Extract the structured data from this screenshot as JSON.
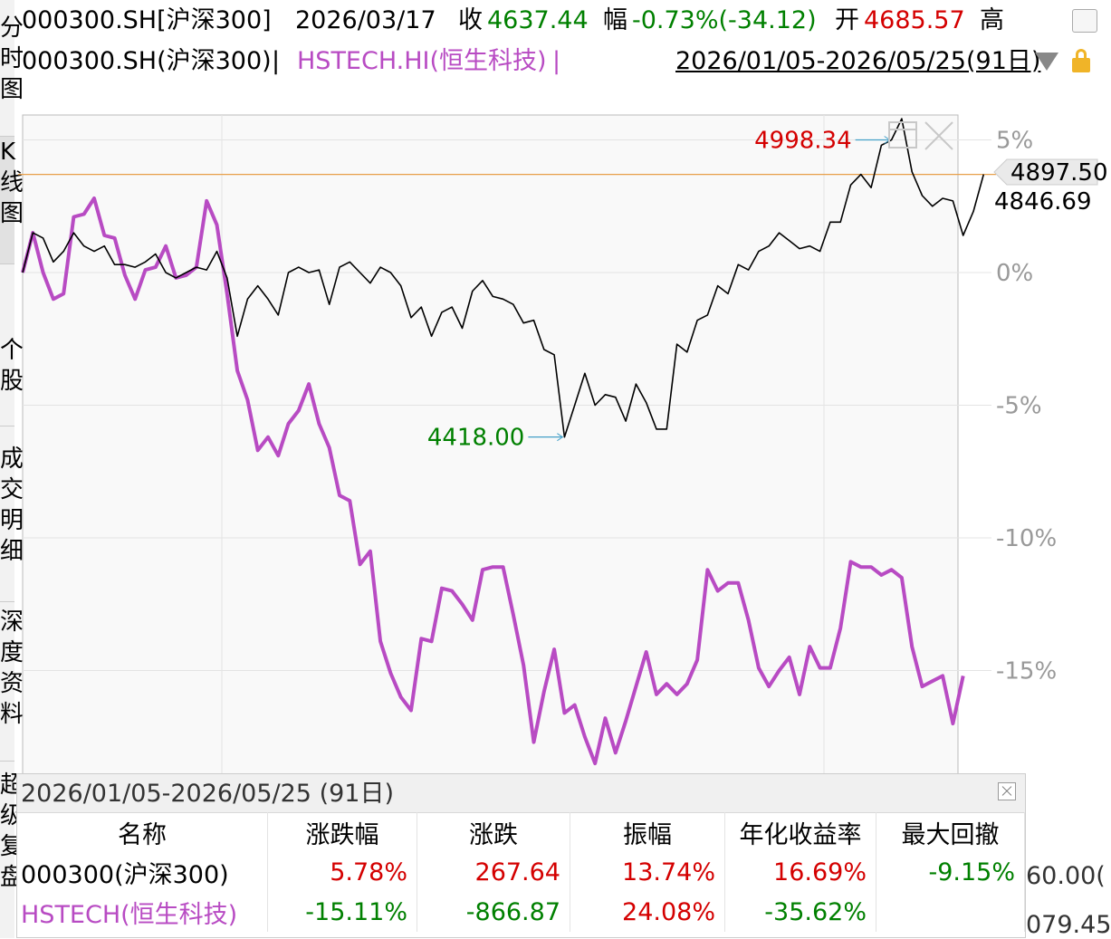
{
  "header": {
    "code": "000300.SH[沪深300]",
    "date": "2026/03/17",
    "close_label": "收",
    "close_value": "4637.44",
    "change_label": "幅",
    "change_value": "-0.73%(-34.12)",
    "open_label": "开",
    "open_value": "4685.57",
    "high_label": "高"
  },
  "legend": {
    "series1": "000300.SH(沪深300)",
    "separator": " | ",
    "series2": "HSTECH.HI(恒生科技)",
    "trailing": " |",
    "range": "2026/01/05-2026/05/25(91日)"
  },
  "sidebar": {
    "items": [
      {
        "label": "分时图",
        "active": false
      },
      {
        "label": "K线图",
        "active": true
      },
      {
        "label": "个股",
        "active": false
      },
      {
        "label": "成交明细",
        "active": false
      },
      {
        "label": "深度资料",
        "active": false
      },
      {
        "label": "超级复盘",
        "active": false
      }
    ]
  },
  "colors": {
    "csi300": "#000000",
    "hstech": "#b84bc3",
    "up": "#d40000",
    "down": "#008000",
    "refline": "#e8a04a"
  },
  "chart_data": {
    "type": "line",
    "yaxis_unit": "%",
    "ylim": [
      -18.5,
      6.5
    ],
    "y_ticks": [
      "5%",
      "0%",
      "-5%",
      "-10%",
      "-15%"
    ],
    "grid": true,
    "series": [
      {
        "name": "000300.SH(沪深300)",
        "color": "#000000",
        "values": [
          0.0,
          1.5,
          1.3,
          0.4,
          0.8,
          1.5,
          1.0,
          0.8,
          1.0,
          0.3,
          0.3,
          0.2,
          0.4,
          0.7,
          0.0,
          -0.2,
          0.0,
          0.2,
          0.1,
          0.8,
          -0.2,
          -2.4,
          -1.0,
          -0.5,
          -1.0,
          -1.6,
          0.0,
          0.2,
          0.0,
          0.1,
          -1.2,
          0.2,
          0.4,
          0.0,
          -0.4,
          0.2,
          0.0,
          -0.5,
          -1.7,
          -1.3,
          -2.4,
          -1.5,
          -1.3,
          -2.1,
          -0.7,
          -0.3,
          -0.9,
          -1.0,
          -1.2,
          -1.9,
          -1.8,
          -2.9,
          -3.1,
          -6.2,
          -5.0,
          -3.8,
          -5.0,
          -4.6,
          -4.7,
          -5.6,
          -4.2,
          -4.9,
          -5.9,
          -5.9,
          -2.7,
          -3.0,
          -1.8,
          -1.6,
          -0.5,
          -0.8,
          0.3,
          0.1,
          0.8,
          1.0,
          1.5,
          1.2,
          0.9,
          1.0,
          0.8,
          1.9,
          1.9,
          3.3,
          3.7,
          3.2,
          4.8,
          5.0,
          5.8,
          3.8,
          2.9,
          2.5,
          2.8,
          2.7,
          1.4,
          2.3,
          3.7
        ]
      },
      {
        "name": "HSTECH.HI(恒生科技)",
        "color": "#b84bc3",
        "values": [
          0.0,
          1.5,
          0.0,
          -1.0,
          -0.8,
          2.1,
          2.2,
          2.8,
          1.4,
          1.3,
          -0.1,
          -1.0,
          0.1,
          0.2,
          1.0,
          -0.2,
          -0.1,
          0.2,
          2.7,
          1.8,
          -0.8,
          -3.7,
          -4.8,
          -6.7,
          -6.2,
          -6.9,
          -5.7,
          -5.2,
          -4.2,
          -5.7,
          -6.6,
          -8.4,
          -8.6,
          -11.0,
          -10.5,
          -13.9,
          -15.1,
          -16.0,
          -16.5,
          -13.8,
          -13.9,
          -11.9,
          -12.0,
          -12.5,
          -13.1,
          -11.2,
          -11.1,
          -11.1,
          -12.9,
          -14.8,
          -17.7,
          -15.8,
          -14.2,
          -16.6,
          -16.3,
          -17.5,
          -18.5,
          -16.8,
          -18.1,
          -16.9,
          -15.6,
          -14.3,
          -15.9,
          -15.5,
          -15.9,
          -15.5,
          -14.6,
          -11.2,
          -12.0,
          -11.7,
          -11.7,
          -13.1,
          -14.9,
          -15.6,
          -15.0,
          -14.5,
          -15.9,
          -14.1,
          -14.9,
          -14.9,
          -13.4,
          -10.9,
          -11.1,
          -11.1,
          -11.4,
          -11.2,
          -11.5,
          -14.1,
          -15.6,
          -15.4,
          -15.2,
          -17.0,
          -15.2
        ]
      }
    ],
    "annotations": [
      {
        "label": "4998.34",
        "series": 0,
        "index": 85,
        "color": "#d40000"
      },
      {
        "label": "4418.00",
        "series": 0,
        "index": 53,
        "color": "#008000"
      }
    ],
    "right_labels": [
      "4897.50",
      "4846.69"
    ],
    "reference_line_value": 3.7
  },
  "stats_panel": {
    "title": "2026/01/05-2026/05/25 (91日)",
    "headers": [
      "名称",
      "涨跌幅",
      "涨跌",
      "振幅",
      "年化收益率",
      "最大回撤"
    ],
    "rows": [
      {
        "name": "000300(沪深300)",
        "change_pct": "5.78%",
        "change": "267.64",
        "amplitude": "13.74%",
        "annualized": "16.69%",
        "max_drawdown": "-9.15%"
      },
      {
        "name": "HSTECH(恒生科技)",
        "change_pct": "-15.11%",
        "change": "-866.87",
        "amplitude": "24.08%",
        "annualized": "-35.62%",
        "max_drawdown": ""
      }
    ]
  },
  "right_fragments": [
    "60.00(",
    "079.45"
  ]
}
